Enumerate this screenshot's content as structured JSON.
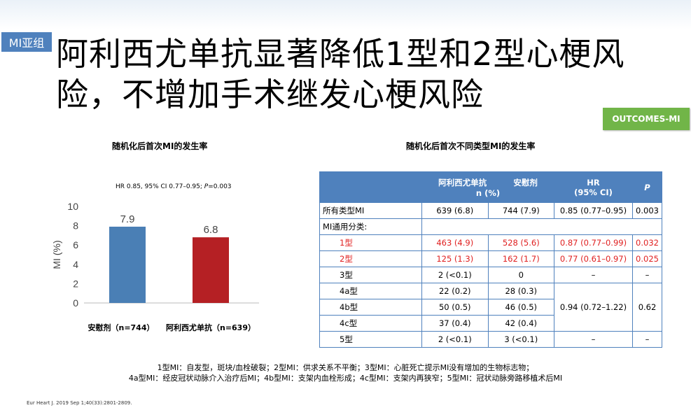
{
  "tag": "MI亚组",
  "title": "阿利西尤单抗显著降低1型和2型心梗风险，不增加手术继发心梗风险",
  "badge": "OUTCOMES-MI",
  "left_title": "随机化后首次MI的发生率",
  "right_title": "随机化后首次不同类型MI的发生率",
  "hr_note": "HR 0.85, 95% CI 0.77–0.95; P=0.003",
  "chart_data": {
    "type": "bar",
    "categories": [
      "安慰剂（n=744）",
      "阿利西尤单抗（n=639）"
    ],
    "values": [
      7.9,
      6.8
    ],
    "value_labels": [
      "7.9",
      "6.8"
    ],
    "colors": [
      "#4a7fb5",
      "#b52024"
    ],
    "ylabel": "MI (%)",
    "ylim": [
      0,
      10
    ],
    "yticks": [
      "0",
      "2",
      "4",
      "6",
      "8",
      "10"
    ],
    "grid": false
  },
  "table": {
    "headers": [
      "阿利西尤单抗",
      "安慰剂",
      "n (%)",
      "HR",
      "(95% CI)",
      "P"
    ],
    "rows": [
      {
        "label": "所有类型MI",
        "a": "639 (6.8)",
        "b": "744 (7.9)",
        "hr": "0.85 (0.77–0.95)",
        "p": "0.003"
      },
      {
        "label": "MI通用分类:"
      },
      {
        "label": "1型",
        "a": "463 (4.9)",
        "b": "528 (5.6)",
        "hr": "0.87 (0.77–0.99)",
        "p": "0.032"
      },
      {
        "label": "2型",
        "a": "125 (1.3)",
        "b": "162 (1.7)",
        "hr": "0.77 (0.61–0.97)",
        "p": "0.025"
      },
      {
        "label": "3型",
        "a": "2 (<0.1)",
        "b": "0",
        "hr": "–",
        "p": "–"
      },
      {
        "label": "4a型",
        "a": "22 (0.2)",
        "b": "28 (0.3)"
      },
      {
        "label": "4b型",
        "a": "50 (0.5)",
        "b": "46 (0.5)",
        "hr": "0.94 (0.72–1.22)",
        "p": "0.62"
      },
      {
        "label": "4c型",
        "a": "37 (0.4)",
        "b": "42 (0.4)"
      },
      {
        "label": "5型",
        "a": "2 (<0.1)",
        "b": "3 (<0.1)",
        "hr": "–",
        "p": "–"
      }
    ]
  },
  "footnote_line1": "1型MI：自发型，斑块/血栓破裂；2型MI：供求关系不平衡；3型MI：心脏死亡提示MI没有增加的生物标志物；",
  "footnote_line2": "4a型MI：经皮冠状动脉介入治疗后MI；4b型MI：支架内血栓形成；4c型MI：支架内再狭窄；5型MI：冠状动脉旁路移植术后MI",
  "reference": "Eur Heart J. 2019 Sep 1;40(33):2801-2809."
}
